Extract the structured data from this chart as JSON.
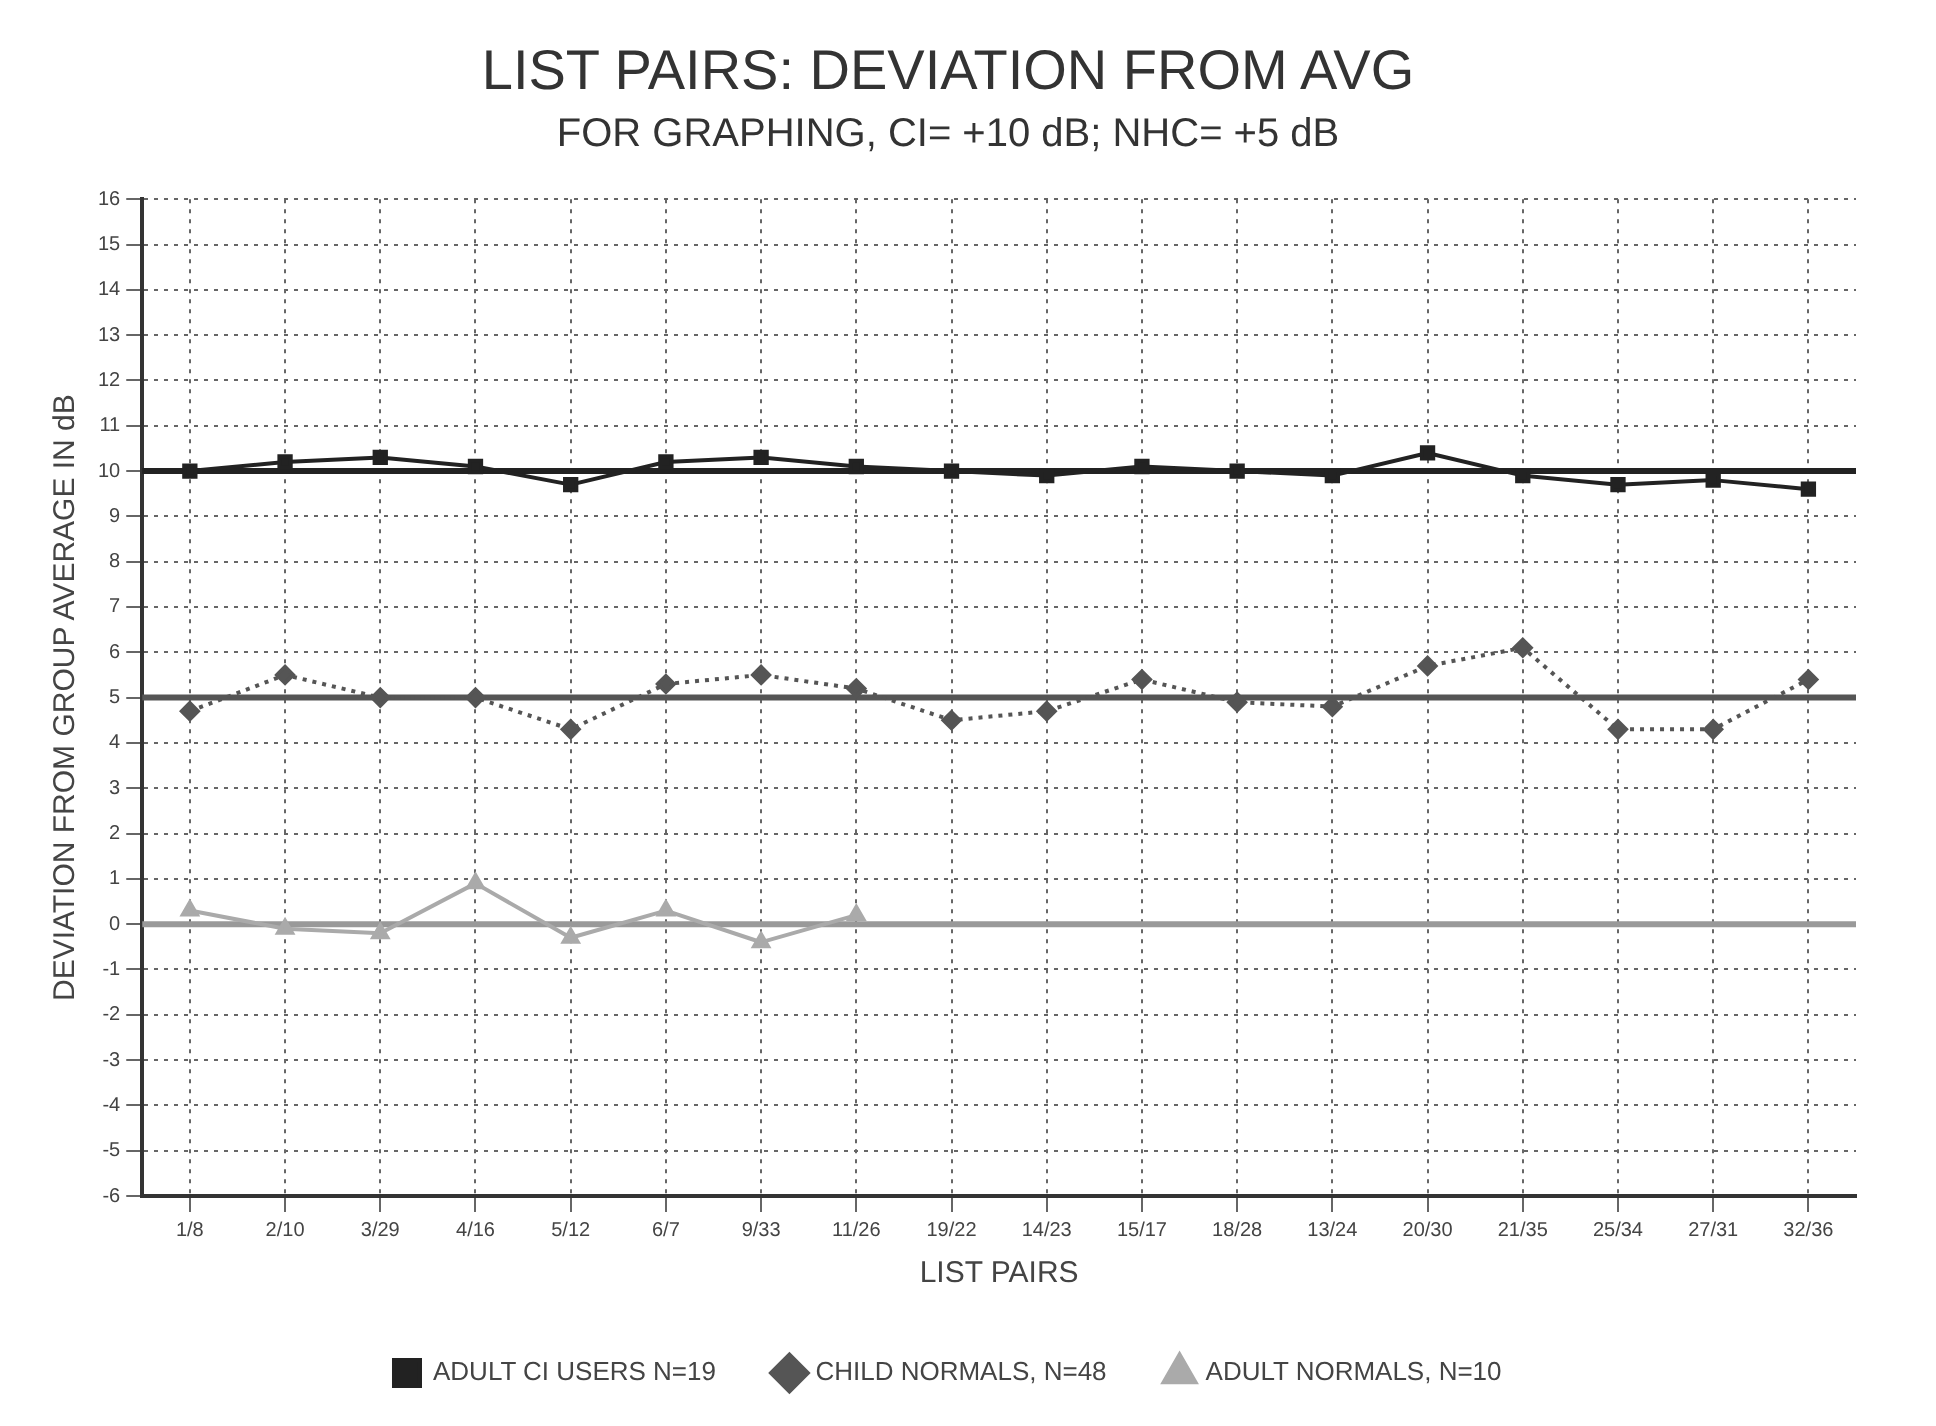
{
  "chart_data": {
    "type": "line",
    "title": "LIST PAIRS: DEVIATION FROM AVG",
    "subtitle": "FOR GRAPHING, CI= +10 dB; NHC= +5 dB",
    "xlabel": "LIST PAIRS",
    "ylabel": "DEVIATION FROM GROUP AVERAGE IN dB",
    "categories": [
      "1/8",
      "2/10",
      "3/29",
      "4/16",
      "5/12",
      "6/7",
      "9/33",
      "11/26",
      "19/22",
      "14/23",
      "15/17",
      "18/28",
      "13/24",
      "20/30",
      "21/35",
      "25/34",
      "27/31",
      "32/36"
    ],
    "series": [
      {
        "name": "ADULT CI USERS N=19",
        "color": "#222222",
        "marker": "square",
        "line_style": "solid",
        "values": [
          10.0,
          10.2,
          10.3,
          10.1,
          9.7,
          10.2,
          10.3,
          10.1,
          10.0,
          9.9,
          10.1,
          10.0,
          9.9,
          10.4,
          9.9,
          9.7,
          9.8,
          9.6
        ]
      },
      {
        "name": "CHILD NORMALS, N=48",
        "color": "#555555",
        "marker": "diamond",
        "line_style": "dotted",
        "values": [
          4.7,
          5.5,
          5.0,
          5.0,
          4.3,
          5.3,
          5.5,
          5.2,
          4.5,
          4.7,
          5.4,
          4.9,
          4.8,
          5.7,
          6.1,
          4.3,
          4.3,
          5.4
        ]
      },
      {
        "name": "ADULT NORMALS, N=10",
        "color": "#aaaaaa",
        "marker": "triangle",
        "line_style": "solid",
        "values": [
          0.3,
          -0.1,
          -0.2,
          0.9,
          -0.3,
          0.3,
          -0.4,
          0.2,
          null,
          null,
          null,
          null,
          null,
          null,
          null,
          null,
          null,
          null
        ]
      }
    ],
    "ylim": [
      -6,
      16
    ],
    "yticks": [
      -6,
      -5,
      -4,
      -3,
      -2,
      -1,
      0,
      1,
      2,
      3,
      4,
      5,
      6,
      7,
      8,
      9,
      10,
      11,
      12,
      13,
      14,
      15,
      16
    ],
    "ref_lines": [
      {
        "axis": "y",
        "value": 10,
        "color": "#222222"
      },
      {
        "axis": "y",
        "value": 5,
        "color": "#555555"
      },
      {
        "axis": "y",
        "value": 0,
        "color": "#999999"
      }
    ],
    "grid": true,
    "legend": "bottom"
  }
}
